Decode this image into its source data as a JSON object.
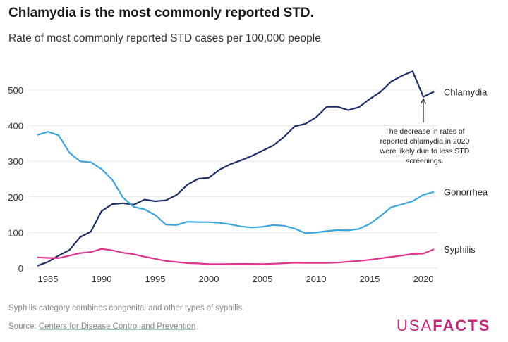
{
  "title": "Chlamydia is the most commonly reported STD.",
  "subtitle": "Rate of most commonly reported STD cases per 100,000 people",
  "footnote": "Syphilis category combines congenital and other types of syphilis.",
  "source_prefix": "Source: ",
  "source_link": "Centers for Disease Control and Prevention",
  "logo": {
    "light": "USA",
    "bold": "FACTS"
  },
  "chart_data": {
    "type": "line",
    "title": "Chlamydia is the most commonly reported STD.",
    "subtitle": "Rate of most commonly reported STD cases per 100,000 people",
    "xlabel": "",
    "ylabel": "",
    "xlim": [
      1984,
      2021
    ],
    "ylim": [
      0,
      550
    ],
    "yticks": [
      0,
      100,
      200,
      300,
      400,
      500
    ],
    "ytick_labels": [
      "0",
      "100",
      "200",
      "300",
      "400",
      "500"
    ],
    "xticks": [
      1985,
      1990,
      1995,
      2000,
      2005,
      2010,
      2015,
      2020
    ],
    "xtick_labels": [
      "1985",
      "1990",
      "1995",
      "2000",
      "2005",
      "2010",
      "2015",
      "2020"
    ],
    "grid": true,
    "legend": "direct labels at line ends (right)",
    "x": [
      1984,
      1985,
      1986,
      1987,
      1988,
      1989,
      1990,
      1991,
      1992,
      1993,
      1994,
      1995,
      1996,
      1997,
      1998,
      1999,
      2000,
      2001,
      2002,
      2003,
      2004,
      2005,
      2006,
      2007,
      2008,
      2009,
      2010,
      2011,
      2012,
      2013,
      2014,
      2015,
      2016,
      2017,
      2018,
      2019,
      2020,
      2021
    ],
    "series": [
      {
        "name": "Chlamydia",
        "color": "#1f2f6b",
        "values": [
          6.5,
          17.4,
          35.2,
          50.8,
          87.1,
          102.5,
          160.2,
          179.7,
          182.3,
          178.0,
          192.5,
          187.8,
          190.6,
          205.5,
          234.2,
          250.8,
          253.8,
          276.6,
          291.5,
          302.7,
          315.0,
          329.4,
          344.3,
          368.4,
          398.1,
          405.3,
          423.6,
          453.4,
          453.3,
          443.5,
          452.2,
          475.0,
          494.7,
          524.0,
          539.9,
          552.8,
          481.3,
          495.5
        ]
      },
      {
        "name": "Gonorrhea",
        "color": "#3ba6dc",
        "values": [
          374,
          383,
          373,
          324,
          300,
          297,
          278,
          248,
          198,
          172,
          165,
          149,
          122,
          121,
          130,
          129,
          129,
          127,
          123,
          117,
          114,
          116,
          121,
          119,
          111,
          98,
          100,
          104,
          107,
          106,
          110,
          124,
          146,
          171,
          179,
          188,
          206,
          214
        ]
      },
      {
        "name": "Syphilis",
        "color": "#e0348f",
        "values": [
          30,
          28.7,
          28,
          35,
          42,
          45,
          54,
          50,
          43,
          39,
          32,
          26,
          20,
          17,
          14,
          13,
          11,
          11,
          11.5,
          11.9,
          11.7,
          11.3,
          12.3,
          13.7,
          15,
          14.6,
          14.7,
          14.6,
          15.4,
          17.9,
          20.1,
          23.4,
          27.4,
          31.4,
          35.3,
          39.7,
          40.8,
          52.9
        ]
      }
    ],
    "annotation": {
      "x": 2020,
      "text": "The decrease in rates of reported chlamydia in 2020 were likely due to less STD screenings."
    }
  }
}
